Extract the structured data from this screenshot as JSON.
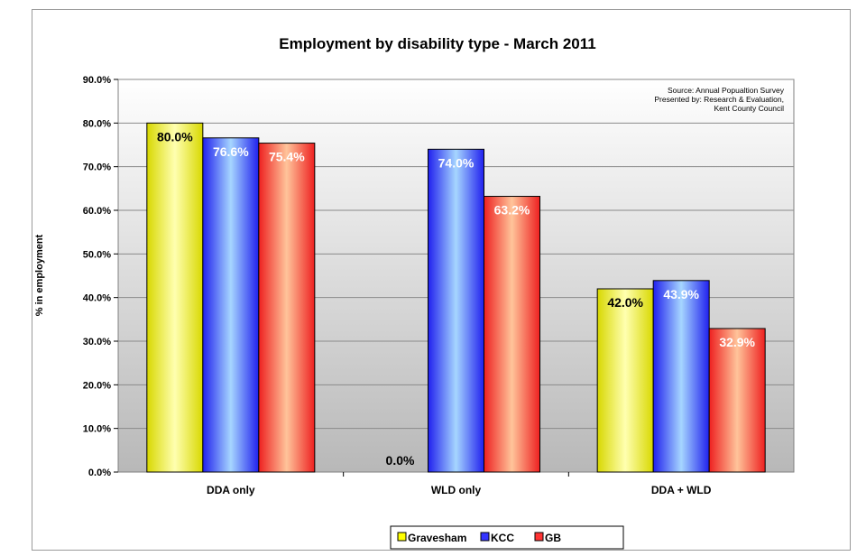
{
  "chart_data": {
    "type": "bar",
    "title": "Employment by disability type - March 2011",
    "xlabel": "",
    "ylabel": "% in employment",
    "categories": [
      "DDA only",
      "WLD only",
      "DDA + WLD"
    ],
    "series": [
      {
        "name": "Gravesham",
        "values": [
          80.0,
          0.0,
          42.0
        ],
        "color": "#ffff00",
        "labels": [
          "80.0%",
          "0.0%",
          "42.0%"
        ]
      },
      {
        "name": "KCC",
        "values": [
          76.6,
          74.0,
          43.9
        ],
        "color": "#3333ff",
        "labels": [
          "76.6%",
          "74.0%",
          "43.9%"
        ]
      },
      {
        "name": "GB",
        "values": [
          75.4,
          63.2,
          32.9
        ],
        "color": "#ff3333",
        "labels": [
          "75.4%",
          "63.2%",
          "32.9%"
        ]
      }
    ],
    "ylim": [
      0,
      90
    ],
    "yticks": [
      "0.0%",
      "10.0%",
      "20.0%",
      "30.0%",
      "40.0%",
      "50.0%",
      "60.0%",
      "70.0%",
      "80.0%",
      "90.0%"
    ],
    "grid": true,
    "legend_position": "bottom",
    "annotation": [
      "Source: Annual Popualtion Survey",
      "Presented by: Research & Evaluation,",
      "Kent County Council"
    ]
  }
}
